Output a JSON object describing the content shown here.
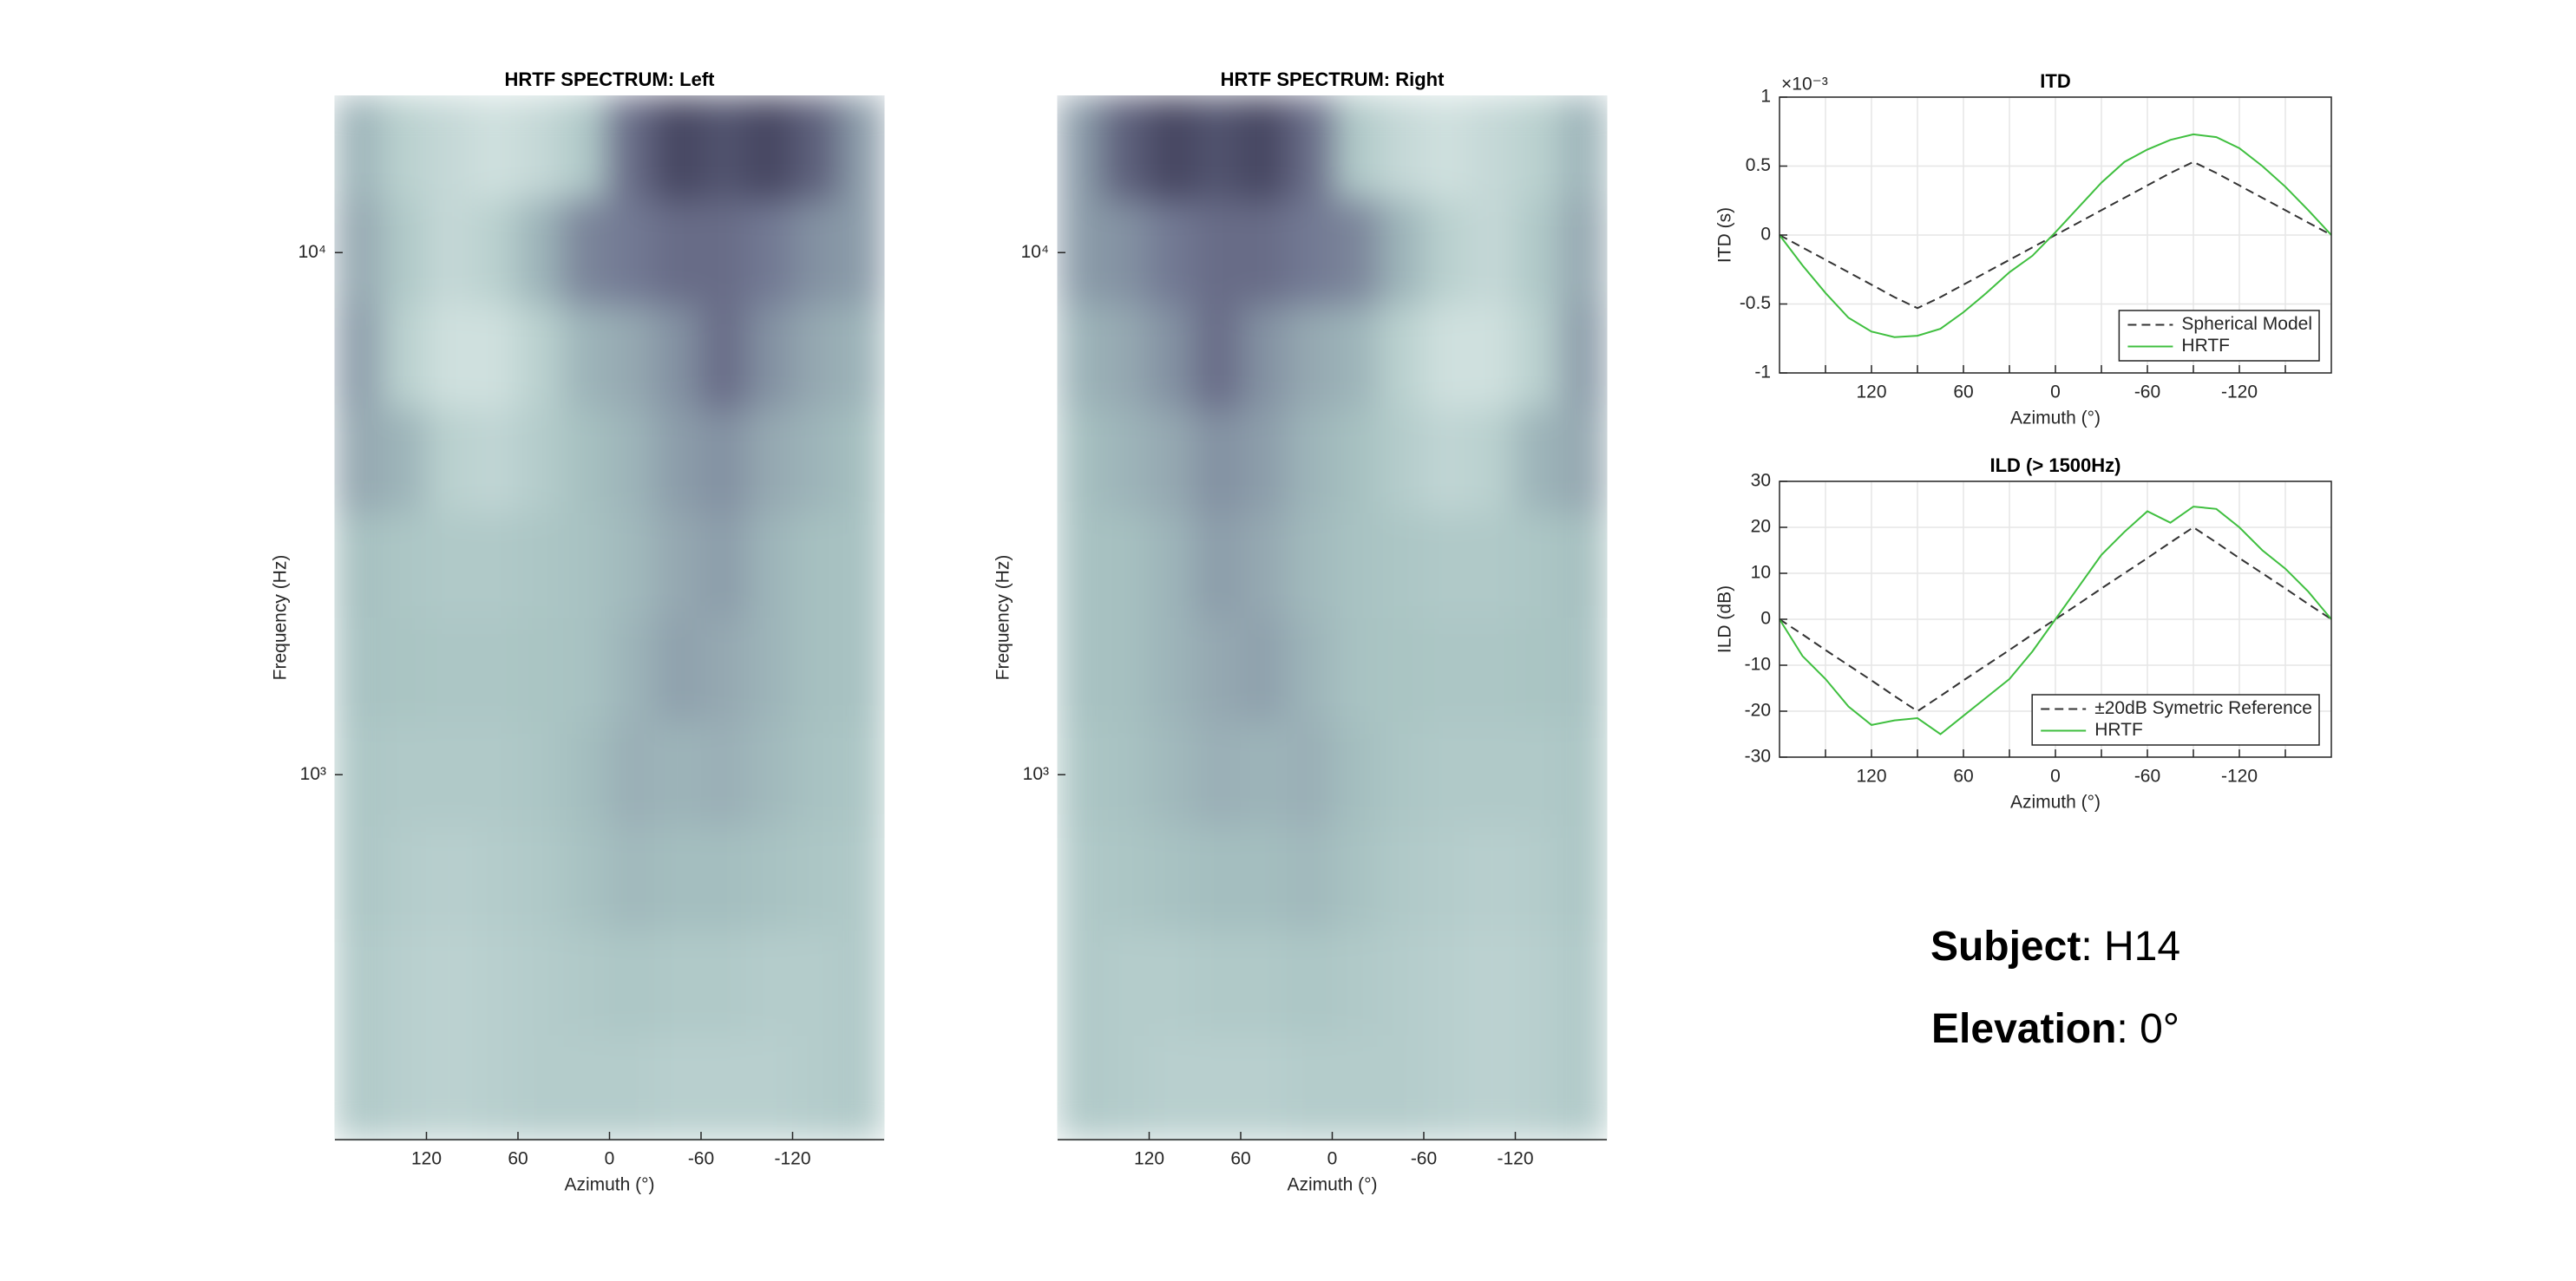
{
  "chart_data": [
    {
      "type": "heatmap",
      "title": "HRTF SPECTRUM: Left",
      "xlabel": "Azimuth (°)",
      "ylabel": "Frequency (Hz)",
      "xlim": [
        180,
        -180
      ],
      "xticks": [
        120,
        60,
        0,
        -60,
        -120
      ],
      "ylim": [
        200,
        20000
      ],
      "yscale": "log",
      "yticks": [
        {
          "value": 1000,
          "label": "10³"
        },
        {
          "value": 10000,
          "label": "10⁴"
        }
      ],
      "colormap": [
        "#25203a",
        "#6f7590",
        "#a9c4c3",
        "#eef6f4"
      ],
      "x": [
        165,
        135,
        105,
        75,
        45,
        15,
        -15,
        -45,
        -75,
        -105,
        -135,
        -165
      ],
      "y": [
        15849,
        10000,
        6310,
        3981,
        2512,
        1585,
        1000,
        631,
        398,
        251
      ],
      "z": [
        [
          0.6,
          0.75,
          0.8,
          0.85,
          0.8,
          0.7,
          0.3,
          0.15,
          0.2,
          0.15,
          0.25,
          0.5
        ],
        [
          0.55,
          0.7,
          0.8,
          0.75,
          0.6,
          0.4,
          0.35,
          0.3,
          0.3,
          0.35,
          0.45,
          0.5
        ],
        [
          0.5,
          0.75,
          0.85,
          0.85,
          0.75,
          0.6,
          0.55,
          0.45,
          0.3,
          0.45,
          0.55,
          0.6
        ],
        [
          0.55,
          0.6,
          0.75,
          0.78,
          0.72,
          0.65,
          0.6,
          0.5,
          0.45,
          0.55,
          0.6,
          0.65
        ],
        [
          0.65,
          0.68,
          0.7,
          0.7,
          0.68,
          0.66,
          0.62,
          0.55,
          0.5,
          0.6,
          0.65,
          0.66
        ],
        [
          0.66,
          0.67,
          0.68,
          0.68,
          0.67,
          0.66,
          0.6,
          0.52,
          0.55,
          0.6,
          0.65,
          0.66
        ],
        [
          0.68,
          0.7,
          0.7,
          0.7,
          0.68,
          0.64,
          0.58,
          0.6,
          0.58,
          0.62,
          0.66,
          0.68
        ],
        [
          0.68,
          0.72,
          0.74,
          0.72,
          0.7,
          0.66,
          0.62,
          0.64,
          0.64,
          0.66,
          0.68,
          0.7
        ],
        [
          0.7,
          0.74,
          0.76,
          0.74,
          0.72,
          0.7,
          0.68,
          0.7,
          0.7,
          0.72,
          0.72,
          0.7
        ],
        [
          0.7,
          0.74,
          0.76,
          0.74,
          0.72,
          0.72,
          0.72,
          0.74,
          0.74,
          0.74,
          0.72,
          0.7
        ]
      ]
    },
    {
      "type": "heatmap",
      "title": "HRTF SPECTRUM: Right",
      "xlabel": "Azimuth (°)",
      "ylabel": "Frequency (Hz)",
      "xlim": [
        180,
        -180
      ],
      "xticks": [
        120,
        60,
        0,
        -60,
        -120
      ],
      "ylim": [
        200,
        20000
      ],
      "yscale": "log",
      "yticks": [
        {
          "value": 1000,
          "label": "10³"
        },
        {
          "value": 10000,
          "label": "10⁴"
        }
      ],
      "colormap": [
        "#25203a",
        "#6f7590",
        "#a9c4c3",
        "#eef6f4"
      ],
      "x": [
        165,
        135,
        105,
        75,
        45,
        15,
        -15,
        -45,
        -75,
        -105,
        -135,
        -165
      ],
      "y": [
        15849,
        10000,
        6310,
        3981,
        2512,
        1585,
        1000,
        631,
        398,
        251
      ],
      "z": [
        [
          0.5,
          0.25,
          0.15,
          0.2,
          0.15,
          0.3,
          0.7,
          0.8,
          0.85,
          0.8,
          0.75,
          0.6
        ],
        [
          0.5,
          0.45,
          0.35,
          0.3,
          0.3,
          0.35,
          0.4,
          0.6,
          0.75,
          0.8,
          0.7,
          0.55
        ],
        [
          0.6,
          0.55,
          0.45,
          0.3,
          0.45,
          0.55,
          0.6,
          0.75,
          0.85,
          0.85,
          0.75,
          0.5
        ],
        [
          0.65,
          0.6,
          0.55,
          0.45,
          0.5,
          0.6,
          0.65,
          0.72,
          0.78,
          0.75,
          0.6,
          0.55
        ],
        [
          0.66,
          0.65,
          0.6,
          0.5,
          0.55,
          0.62,
          0.66,
          0.68,
          0.7,
          0.7,
          0.68,
          0.65
        ],
        [
          0.66,
          0.65,
          0.6,
          0.55,
          0.52,
          0.6,
          0.66,
          0.67,
          0.68,
          0.68,
          0.67,
          0.66
        ],
        [
          0.68,
          0.66,
          0.62,
          0.58,
          0.6,
          0.58,
          0.64,
          0.68,
          0.7,
          0.7,
          0.7,
          0.68
        ],
        [
          0.7,
          0.68,
          0.66,
          0.64,
          0.64,
          0.62,
          0.66,
          0.7,
          0.72,
          0.74,
          0.72,
          0.68
        ],
        [
          0.7,
          0.72,
          0.72,
          0.7,
          0.7,
          0.68,
          0.7,
          0.72,
          0.74,
          0.76,
          0.74,
          0.7
        ],
        [
          0.7,
          0.72,
          0.74,
          0.74,
          0.74,
          0.72,
          0.72,
          0.72,
          0.74,
          0.76,
          0.74,
          0.7
        ]
      ]
    },
    {
      "type": "line",
      "title": "ITD",
      "xlabel": "Azimuth (°)",
      "ylabel": "ITD (s)",
      "exponent_label": "×10⁻³",
      "xlim": [
        180,
        -180
      ],
      "xticks": [
        120,
        60,
        0,
        -60,
        -120
      ],
      "xminorticks": [
        150,
        90,
        30,
        -30,
        -90,
        -150
      ],
      "ylim": [
        -1,
        1
      ],
      "yticks": [
        -1,
        -0.5,
        0,
        0.5,
        1
      ],
      "grid": true,
      "box": true,
      "legend": "southeast",
      "x": [
        180,
        165,
        150,
        135,
        120,
        105,
        90,
        75,
        60,
        45,
        30,
        15,
        0,
        -15,
        -30,
        -45,
        -60,
        -75,
        -90,
        -105,
        -120,
        -135,
        -150,
        -165,
        -180
      ],
      "series": [
        {
          "name": "Spherical Model",
          "color": "#333333",
          "linestyle": "dashed",
          "values": [
            0,
            -0.09,
            -0.18,
            -0.27,
            -0.36,
            -0.45,
            -0.53,
            -0.45,
            -0.36,
            -0.27,
            -0.18,
            -0.09,
            0,
            0.09,
            0.18,
            0.27,
            0.36,
            0.45,
            0.53,
            0.45,
            0.36,
            0.27,
            0.18,
            0.09,
            0
          ]
        },
        {
          "name": "HRTF",
          "color": "#3fbf3f",
          "linestyle": "solid",
          "values": [
            0,
            -0.22,
            -0.42,
            -0.6,
            -0.7,
            -0.74,
            -0.73,
            -0.68,
            -0.56,
            -0.42,
            -0.27,
            -0.15,
            0.02,
            0.2,
            0.38,
            0.53,
            0.62,
            0.69,
            0.73,
            0.71,
            0.63,
            0.5,
            0.35,
            0.18,
            0
          ]
        }
      ]
    },
    {
      "type": "line",
      "title": "ILD (> 1500Hz)",
      "xlabel": "Azimuth (°)",
      "ylabel": "ILD (dB)",
      "xlim": [
        180,
        -180
      ],
      "xticks": [
        120,
        60,
        0,
        -60,
        -120
      ],
      "xminorticks": [
        150,
        90,
        30,
        -30,
        -90,
        -150
      ],
      "ylim": [
        -30,
        30
      ],
      "yticks": [
        -30,
        -20,
        -10,
        0,
        10,
        20,
        30
      ],
      "grid": true,
      "box": true,
      "legend": "southeast",
      "x": [
        180,
        165,
        150,
        135,
        120,
        105,
        90,
        75,
        60,
        45,
        30,
        15,
        0,
        -15,
        -30,
        -45,
        -60,
        -75,
        -90,
        -105,
        -120,
        -135,
        -150,
        -165,
        -180
      ],
      "series": [
        {
          "name": "±20dB Symetric Reference",
          "color": "#333333",
          "linestyle": "dashed",
          "values": [
            0,
            -3.3,
            -6.7,
            -10,
            -13.3,
            -16.7,
            -20,
            -16.7,
            -13.3,
            -10,
            -6.7,
            -3.3,
            0,
            3.3,
            6.7,
            10,
            13.3,
            16.7,
            20,
            16.7,
            13.3,
            10,
            6.7,
            3.3,
            0
          ]
        },
        {
          "name": "HRTF",
          "color": "#3fbf3f",
          "linestyle": "solid",
          "values": [
            0,
            -8,
            -13,
            -19,
            -23,
            -22,
            -21.5,
            -25,
            -21,
            -17,
            -13,
            -7,
            0,
            7,
            14,
            19,
            23.5,
            21,
            24.5,
            24,
            20,
            15,
            11,
            6,
            0
          ]
        }
      ]
    }
  ],
  "subject_info": [
    {
      "label": "Subject",
      "text": ": H14"
    },
    {
      "label": "Elevation",
      "text": ": 0°"
    }
  ]
}
